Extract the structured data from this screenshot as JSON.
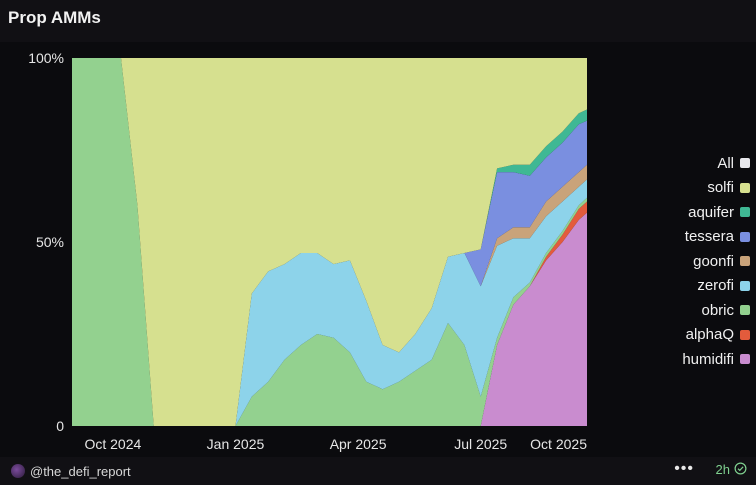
{
  "title": "Prop AMMs",
  "footer": {
    "author": "@the_defi_report",
    "menu": "•••",
    "age": "2h"
  },
  "chart_data": {
    "type": "area",
    "stacked": true,
    "normalized": true,
    "title": "Prop AMMs",
    "xlabel": "",
    "ylabel": "",
    "x_range": [
      0,
      12.6
    ],
    "x_unit": "months since 2024-09-01",
    "ylim": [
      0,
      100
    ],
    "y_ticks": [
      {
        "value": 0,
        "label": "0"
      },
      {
        "value": 50,
        "label": "50%"
      },
      {
        "value": 100,
        "label": "100%"
      }
    ],
    "x_ticks": [
      {
        "value": 1.0,
        "label": "Oct 2024"
      },
      {
        "value": 4.0,
        "label": "Jan 2025"
      },
      {
        "value": 7.0,
        "label": "Apr 2025"
      },
      {
        "value": 10.0,
        "label": "Jul 2025"
      },
      {
        "value": 13.0,
        "label": "Oct 2025"
      }
    ],
    "legend_position": "right",
    "x": [
      0,
      0.4,
      0.8,
      1.2,
      1.6,
      2.0,
      2.4,
      2.8,
      3.2,
      3.6,
      4.0,
      4.4,
      4.8,
      5.2,
      5.6,
      6.0,
      6.4,
      6.8,
      7.2,
      7.6,
      8.0,
      8.4,
      8.8,
      9.2,
      9.6,
      10.0,
      10.4,
      10.8,
      11.2,
      11.6,
      12.0,
      12.4,
      12.6
    ],
    "series": [
      {
        "name": "humidifi",
        "color": "#c98ccf",
        "values": [
          0,
          0,
          0,
          0,
          0,
          0,
          0,
          0,
          0,
          0,
          0,
          0,
          0,
          0,
          0,
          0,
          0,
          0,
          0,
          0,
          0,
          0,
          0,
          0,
          0,
          0,
          22,
          33,
          38,
          45,
          50,
          56,
          58
        ]
      },
      {
        "name": "alphaQ",
        "color": "#e35b3c",
        "values": [
          0,
          0,
          0,
          0,
          0,
          0,
          0,
          0,
          0,
          0,
          0,
          0,
          0,
          0,
          0,
          0,
          0,
          0,
          0,
          0,
          0,
          0,
          0,
          0,
          0,
          0,
          0,
          0,
          0,
          1,
          2,
          3,
          3
        ]
      },
      {
        "name": "obric",
        "color": "#93d18f",
        "values": [
          100,
          100,
          100,
          100,
          60,
          0,
          0,
          0,
          0,
          0,
          0,
          8,
          12,
          18,
          22,
          25,
          24,
          20,
          12,
          10,
          12,
          15,
          18,
          28,
          22,
          8,
          2,
          2,
          1,
          1,
          1,
          1,
          1
        ]
      },
      {
        "name": "zerofi",
        "color": "#8dd3ea",
        "values": [
          0,
          0,
          0,
          0,
          0,
          0,
          0,
          0,
          0,
          0,
          0,
          28,
          30,
          26,
          25,
          22,
          20,
          25,
          22,
          12,
          8,
          10,
          14,
          18,
          25,
          30,
          25,
          16,
          12,
          10,
          8,
          5,
          5
        ]
      },
      {
        "name": "goonfi",
        "color": "#c9a37a",
        "values": [
          0,
          0,
          0,
          0,
          0,
          0,
          0,
          0,
          0,
          0,
          0,
          0,
          0,
          0,
          0,
          0,
          0,
          0,
          0,
          0,
          0,
          0,
          0,
          0,
          0,
          0,
          2,
          3,
          3,
          4,
          4,
          4,
          4
        ]
      },
      {
        "name": "tessera",
        "color": "#7a8fe0",
        "values": [
          0,
          0,
          0,
          0,
          0,
          0,
          0,
          0,
          0,
          0,
          0,
          0,
          0,
          0,
          0,
          0,
          0,
          0,
          0,
          0,
          0,
          0,
          0,
          0,
          0,
          10,
          18,
          15,
          14,
          12,
          12,
          13,
          12
        ]
      },
      {
        "name": "aquifer",
        "color": "#3fb894",
        "values": [
          0,
          0,
          0,
          0,
          0,
          0,
          0,
          0,
          0,
          0,
          0,
          0,
          0,
          0,
          0,
          0,
          0,
          0,
          0,
          0,
          0,
          0,
          0,
          0,
          0,
          0,
          1,
          2,
          3,
          3,
          3,
          3,
          3
        ]
      },
      {
        "name": "solfi",
        "color": "#d6e08f",
        "values": [
          0,
          0,
          0,
          0,
          40,
          100,
          100,
          100,
          100,
          100,
          100,
          64,
          58,
          56,
          53,
          53,
          56,
          55,
          66,
          78,
          80,
          75,
          68,
          54,
          53,
          52,
          30,
          29,
          29,
          24,
          20,
          15,
          14
        ]
      },
      {
        "name": "All",
        "color": "#e8e8ec",
        "values": [
          0,
          0,
          0,
          0,
          0,
          0,
          0,
          0,
          0,
          0,
          0,
          0,
          0,
          0,
          0,
          0,
          0,
          0,
          0,
          0,
          0,
          0,
          0,
          0,
          0,
          0,
          0,
          0,
          0,
          0,
          0,
          0,
          0
        ]
      }
    ]
  }
}
